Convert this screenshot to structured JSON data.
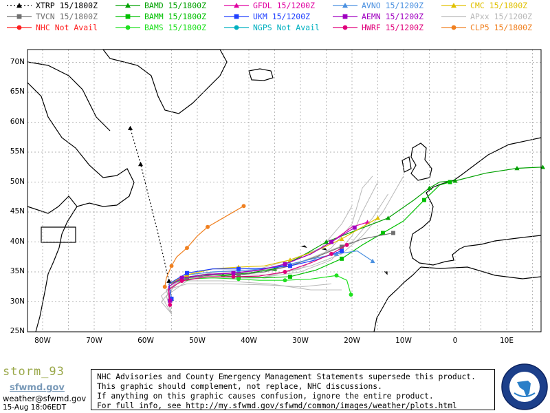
{
  "legend": [
    {
      "label": "XTRP",
      "time": "15/1800Z",
      "color": "#000000",
      "marker": "triangle",
      "dash": true
    },
    {
      "label": "BAMD",
      "time": "15/1800Z",
      "color": "#00a000",
      "marker": "triangle"
    },
    {
      "label": "GFDL",
      "time": "15/1200Z",
      "color": "#e000a0",
      "marker": "triangle"
    },
    {
      "label": "AVNO",
      "time": "15/1200Z",
      "color": "#4a90e0",
      "marker": "triangle"
    },
    {
      "label": "CMC",
      "time": "15/1800Z",
      "color": "#e0c000",
      "marker": "triangle"
    },
    {
      "label": "TVCN",
      "time": "15/1800Z",
      "color": "#707070",
      "marker": "square"
    },
    {
      "label": "BAMM",
      "time": "15/1800Z",
      "color": "#00c000",
      "marker": "square"
    },
    {
      "label": "UKM",
      "time": "15/1200Z",
      "color": "#2040ff",
      "marker": "square"
    },
    {
      "label": "AEMN",
      "time": "15/1200Z",
      "color": "#a000c0",
      "marker": "square"
    },
    {
      "label": "APxx",
      "time": "15/1200Z",
      "color": "#b8b8b8",
      "marker": "none"
    },
    {
      "label": "NHC",
      "time": "Not Avail",
      "color": "#ff2020",
      "marker": "circle"
    },
    {
      "label": "BAMS",
      "time": "15/1800Z",
      "color": "#20e020",
      "marker": "circle"
    },
    {
      "label": "NGPS",
      "time": "Not Avail",
      "color": "#00b0c0",
      "marker": "circle"
    },
    {
      "label": "HWRF",
      "time": "15/1200Z",
      "color": "#e0007a",
      "marker": "circle"
    },
    {
      "label": "CLP5",
      "time": "15/1800Z",
      "color": "#f08020",
      "marker": "circle"
    }
  ],
  "map": {
    "lat_labels": [
      "25N",
      "30N",
      "35N",
      "40N",
      "45N",
      "50N",
      "55N",
      "60N",
      "65N",
      "70N"
    ],
    "lon_labels": [
      "80W",
      "70W",
      "60W",
      "50W",
      "40W",
      "30W",
      "20W",
      "10W",
      "0",
      "10E"
    ]
  },
  "tracks": {
    "XTRP": [
      [
        -55.5,
        33.5
      ],
      [
        -57.5,
        41
      ],
      [
        -61,
        53
      ],
      [
        -63,
        59
      ]
    ],
    "CLP5": [
      [
        -56.3,
        32.5
      ],
      [
        -56,
        34
      ],
      [
        -55,
        36
      ],
      [
        -54,
        37.5
      ],
      [
        -52,
        39
      ],
      [
        -50,
        41
      ],
      [
        -48,
        42.5
      ],
      [
        -45,
        44
      ],
      [
        -41,
        46
      ]
    ],
    "BAMD": [
      [
        -55,
        30.5
      ],
      [
        -55.5,
        33
      ],
      [
        -53,
        34
      ],
      [
        -49,
        34.5
      ],
      [
        -45,
        34.5
      ],
      [
        -40,
        34.8
      ],
      [
        -35,
        35.5
      ],
      [
        -30,
        37.5
      ],
      [
        -25,
        40
      ],
      [
        -19,
        42
      ],
      [
        -13,
        44
      ],
      [
        -8,
        47
      ],
      [
        -5,
        49
      ],
      [
        -3,
        50
      ],
      [
        0,
        50.2
      ],
      [
        6,
        51.5
      ],
      [
        12,
        52.3
      ],
      [
        17,
        52.5
      ]
    ],
    "BAMM": [
      [
        -55,
        30.5
      ],
      [
        -55.5,
        33
      ],
      [
        -52,
        34
      ],
      [
        -47,
        34.5
      ],
      [
        -42,
        34.2
      ],
      [
        -37,
        34
      ],
      [
        -32,
        34.2
      ],
      [
        -27,
        35.3
      ],
      [
        -22,
        37.2
      ],
      [
        -18,
        39.5
      ],
      [
        -14,
        41.5
      ],
      [
        -10,
        43.5
      ],
      [
        -6,
        47
      ],
      [
        -3,
        49.5
      ],
      [
        -1,
        50
      ]
    ],
    "BAMS": [
      [
        -55,
        30.5
      ],
      [
        -55.5,
        33
      ],
      [
        -52,
        33.8
      ],
      [
        -47,
        34
      ],
      [
        -42,
        33.8
      ],
      [
        -38,
        33.6
      ],
      [
        -33,
        33.6
      ],
      [
        -28,
        33.8
      ],
      [
        -23,
        34.4
      ],
      [
        -21,
        33.6
      ],
      [
        -20.2,
        31.2
      ]
    ],
    "TVCN": [
      [
        -55,
        30.5
      ],
      [
        -55.5,
        33
      ],
      [
        -52,
        34
      ],
      [
        -47,
        34.5
      ],
      [
        -42,
        34.5
      ],
      [
        -37,
        35
      ],
      [
        -32,
        36
      ],
      [
        -27,
        37.5
      ],
      [
        -22,
        39.2
      ],
      [
        -18,
        40.5
      ],
      [
        -12,
        41.5
      ]
    ],
    "GFDL": [
      [
        -55.3,
        30.2
      ],
      [
        -55.6,
        32.5
      ],
      [
        -53,
        34
      ],
      [
        -48,
        34.6
      ],
      [
        -43,
        34.8
      ],
      [
        -38,
        35.3
      ],
      [
        -33,
        36.3
      ],
      [
        -28,
        38
      ],
      [
        -24,
        40
      ],
      [
        -20,
        42.5
      ],
      [
        -17,
        43.3
      ]
    ],
    "AVNO": [
      [
        -55,
        30.5
      ],
      [
        -55.5,
        33
      ],
      [
        -52,
        34.5
      ],
      [
        -47,
        35
      ],
      [
        -42,
        35.2
      ],
      [
        -37,
        35.5
      ],
      [
        -32,
        36.3
      ],
      [
        -27,
        37.3
      ],
      [
        -23,
        38
      ],
      [
        -19,
        38.5
      ],
      [
        -16,
        36.8
      ]
    ],
    "CMC": [
      [
        -55,
        30.5
      ],
      [
        -55.5,
        33
      ],
      [
        -52,
        34.5
      ],
      [
        -47,
        35.5
      ],
      [
        -42,
        35.8
      ],
      [
        -37,
        36
      ],
      [
        -32,
        37
      ],
      [
        -27,
        38.5
      ],
      [
        -22,
        40.5
      ],
      [
        -18,
        42.5
      ],
      [
        -15,
        44
      ]
    ],
    "UKM": [
      [
        -55,
        30.5
      ],
      [
        -55.5,
        33
      ],
      [
        -52,
        34.8
      ],
      [
        -47,
        35.5
      ],
      [
        -42,
        35.5
      ],
      [
        -37,
        35.6
      ],
      [
        -32,
        36
      ],
      [
        -27,
        37
      ],
      [
        -22,
        38.5
      ]
    ],
    "AEMN": [
      [
        -55.3,
        30.2
      ],
      [
        -55.6,
        32.5
      ],
      [
        -53,
        34
      ],
      [
        -48,
        34.6
      ],
      [
        -43,
        34.8
      ],
      [
        -38,
        35.3
      ],
      [
        -33,
        36.3
      ],
      [
        -28,
        38
      ],
      [
        -24,
        40
      ],
      [
        -19.5,
        42.4
      ]
    ],
    "HWRF": [
      [
        -55.3,
        29.5
      ],
      [
        -55.6,
        32
      ],
      [
        -53,
        33.5
      ],
      [
        -48,
        34.2
      ],
      [
        -43,
        34.2
      ],
      [
        -38,
        34.3
      ],
      [
        -33,
        35
      ],
      [
        -28,
        36.5
      ],
      [
        -24,
        38
      ],
      [
        -21,
        39.5
      ]
    ]
  },
  "map_info": {
    "disclaimer": [
      "NHC Advisories and County Emergency Management Statements supersede this product.",
      "This graphic should complement, not replace, NHC discussions.",
      "If anything on this graphic causes confusion, ignore the entire product.",
      "For full info, see  http://my.sfwmd.gov/sfwmd/common/images/weather/plots.html"
    ],
    "storm_name": "storm_93",
    "logo_text": "sfwmd.gov",
    "email": "weather@sfwmd.gov",
    "timestamp": "15-Aug 18:06EDT"
  },
  "colors": {
    "grid": "#9a9a9a",
    "land": "#000000",
    "spaghetti": "#b8b8b8"
  }
}
